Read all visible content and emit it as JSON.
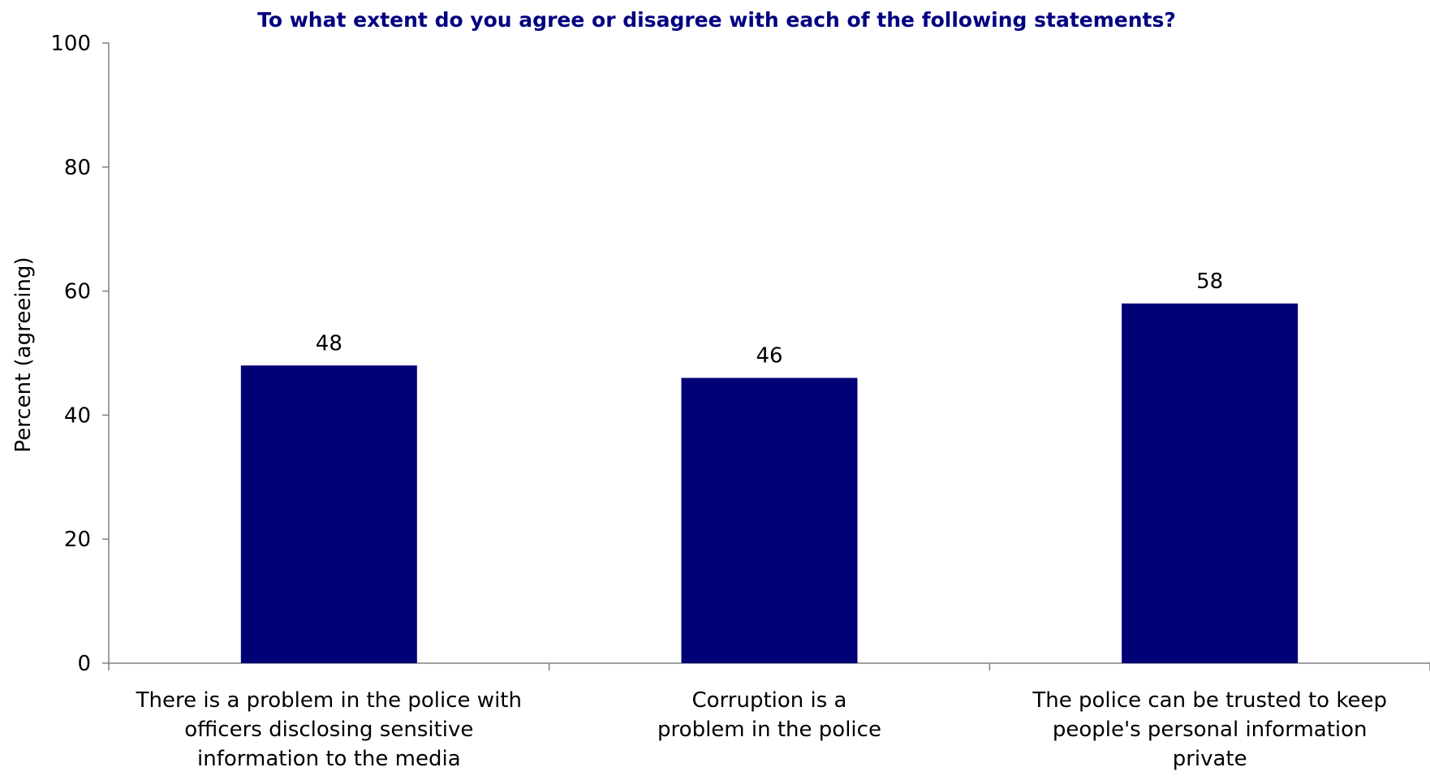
{
  "colors": {
    "bar": "#000077",
    "title": "#000080",
    "axis": "#808080",
    "text": "#000000"
  },
  "chart_data": {
    "type": "bar",
    "title": "To what extent do you agree or disagree with each of the following statements?",
    "xlabel": "",
    "ylabel": "Percent (agreeing)",
    "ylim": [
      0,
      100
    ],
    "yticks": [
      0,
      20,
      40,
      60,
      80,
      100
    ],
    "grid": false,
    "legend": "none",
    "categories": [
      [
        "There is a problem in the police with",
        "officers disclosing sensitive",
        "information to the media"
      ],
      [
        "Corruption is a",
        "problem in the police"
      ],
      [
        "The police can be trusted to keep",
        "people's personal information",
        "private"
      ]
    ],
    "values": [
      48,
      46,
      58
    ],
    "data_labels": [
      "48",
      "46",
      "58"
    ]
  }
}
